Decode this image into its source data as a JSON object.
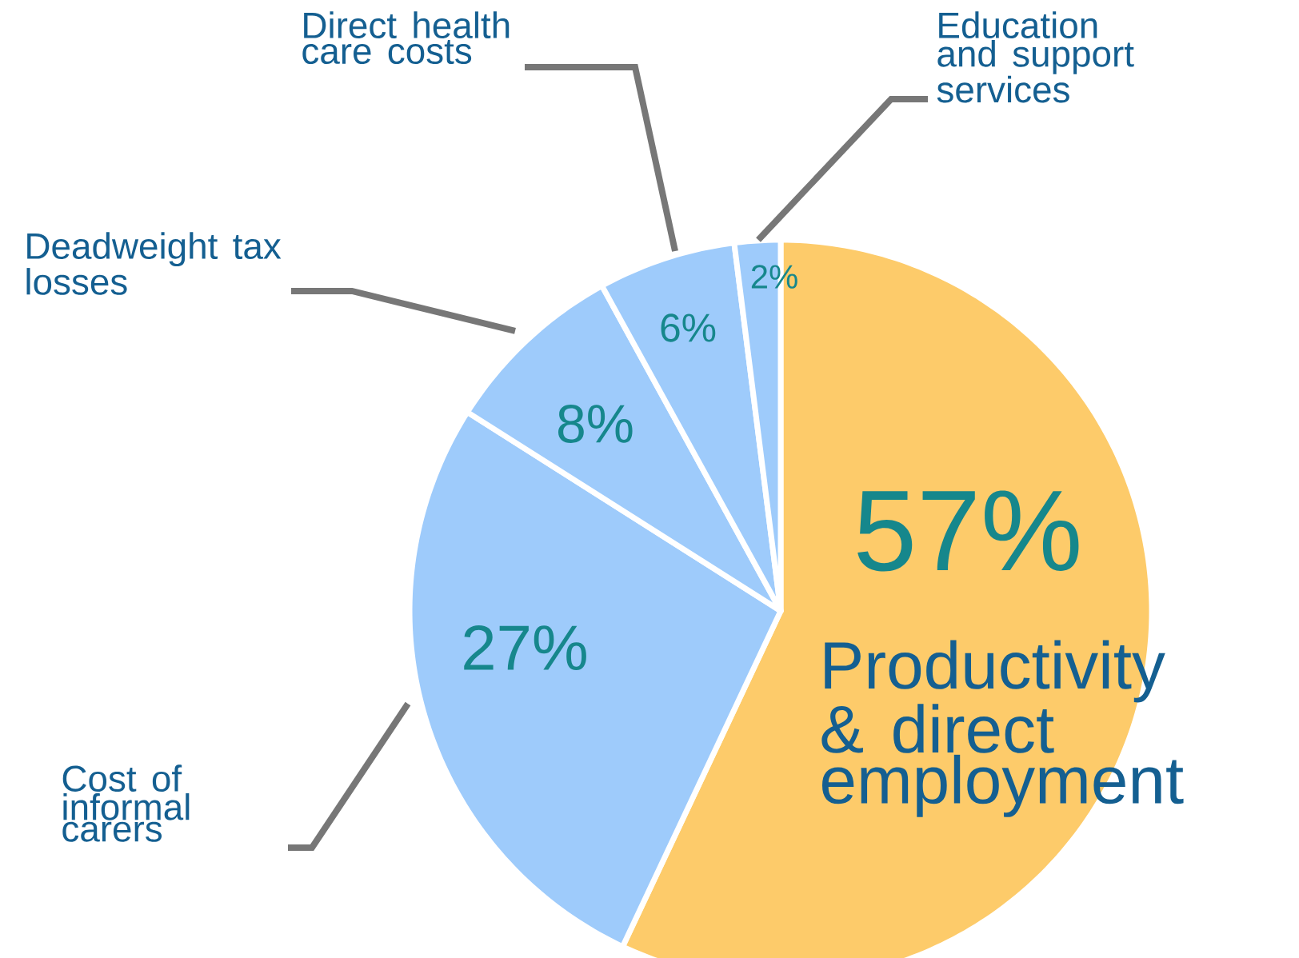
{
  "chart_data": {
    "type": "pie",
    "categories": [
      "Productivity & direct employment",
      "Cost of informal carers",
      "Deadweight tax losses",
      "Direct health care costs",
      "Education and support services"
    ],
    "values": [
      57,
      27,
      8,
      6,
      2
    ],
    "colors": [
      "#fdcb6a",
      "#9ecbfb",
      "#9ecbfb",
      "#9ecbfb",
      "#9ecbfb"
    ],
    "value_labels": [
      "57%",
      "27%",
      "8%",
      "6%",
      "2%"
    ]
  }
}
